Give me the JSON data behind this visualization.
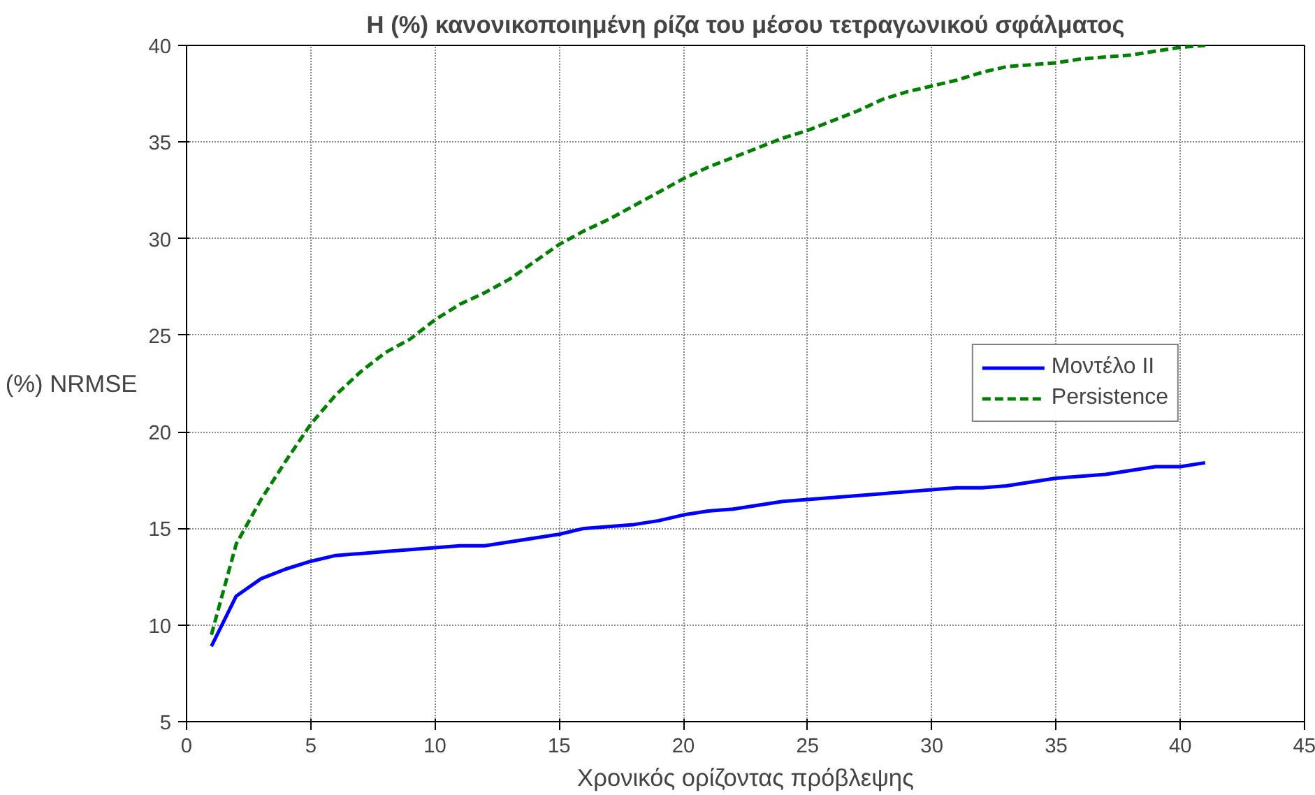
{
  "chart_data": {
    "type": "line",
    "title": "Η (%) κανονικοποιημένη ρίζα του μέσου τετραγωνικού σφάλματος",
    "xlabel": "Χρονικός ορίζοντας πρόβλεψης",
    "ylabel": "(%) NRMSE",
    "x": [
      1,
      2,
      3,
      4,
      5,
      6,
      7,
      8,
      9,
      10,
      11,
      12,
      13,
      14,
      15,
      16,
      17,
      18,
      19,
      20,
      21,
      22,
      23,
      24,
      25,
      26,
      27,
      28,
      29,
      30,
      31,
      32,
      33,
      34,
      35,
      36,
      37,
      38,
      39,
      40,
      41
    ],
    "series": [
      {
        "name": "Μοντέλο ΙΙ",
        "color": "#0000ff",
        "line_style": "solid",
        "values": [
          8.9,
          11.5,
          12.4,
          12.9,
          13.3,
          13.6,
          13.7,
          13.8,
          13.9,
          14.0,
          14.1,
          14.1,
          14.3,
          14.5,
          14.7,
          15.0,
          15.1,
          15.2,
          15.4,
          15.7,
          15.9,
          16.0,
          16.2,
          16.4,
          16.5,
          16.6,
          16.7,
          16.8,
          16.9,
          17.0,
          17.1,
          17.1,
          17.2,
          17.4,
          17.6,
          17.7,
          17.8,
          18.0,
          18.2,
          18.2,
          18.4
        ]
      },
      {
        "name": "Persistence",
        "color": "#008000",
        "line_style": "dashed",
        "values": [
          9.5,
          14.2,
          16.5,
          18.5,
          20.4,
          21.9,
          23.1,
          24.1,
          24.8,
          25.8,
          26.6,
          27.2,
          27.9,
          28.8,
          29.7,
          30.4,
          31.0,
          31.7,
          32.4,
          33.1,
          33.7,
          34.2,
          34.7,
          35.2,
          35.6,
          36.1,
          36.6,
          37.2,
          37.6,
          37.9,
          38.2,
          38.6,
          38.9,
          39.0,
          39.1,
          39.3,
          39.4,
          39.5,
          39.7,
          39.9,
          40.0
        ]
      }
    ],
    "xlim": [
      0,
      45
    ],
    "xticks": [
      0,
      5,
      10,
      15,
      20,
      25,
      30,
      35,
      40,
      45
    ],
    "ylim": [
      5,
      40
    ],
    "yticks": [
      5,
      10,
      15,
      20,
      25,
      30,
      35,
      40
    ],
    "grid": true,
    "legend": "right",
    "marker": "none"
  }
}
